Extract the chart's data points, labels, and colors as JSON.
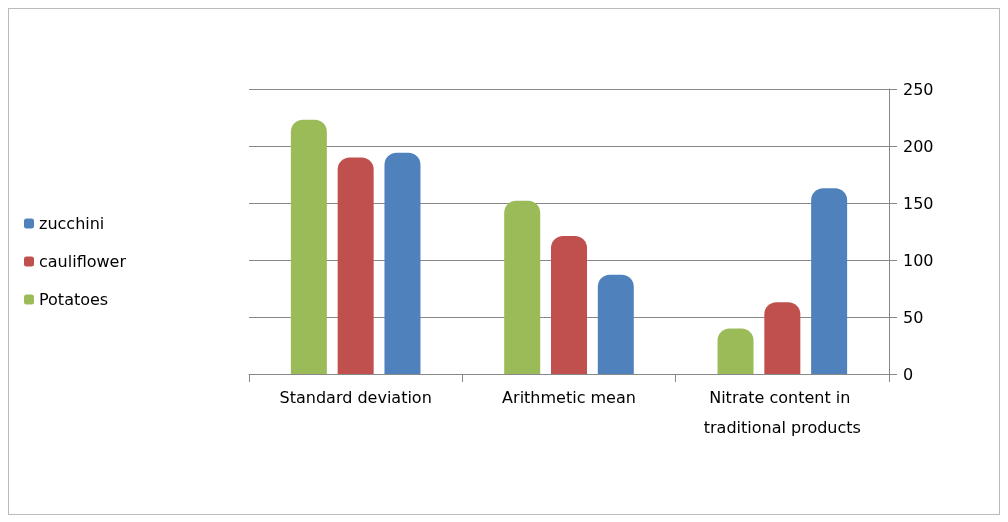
{
  "chart_data": {
    "type": "bar",
    "categories": [
      "Standard deviation",
      "Arithmetic mean",
      "Nitrate content in traditional products"
    ],
    "series": [
      {
        "name": "Potatoes",
        "color": "#9bbb59",
        "values": [
          223,
          152,
          40
        ]
      },
      {
        "name": "cauliflower",
        "color": "#c0504d",
        "values": [
          190,
          121,
          63
        ]
      },
      {
        "name": "zucchini",
        "color": "#4f81bd",
        "values": [
          194,
          87,
          163
        ]
      }
    ],
    "ylim": [
      0,
      250
    ],
    "yticks": [
      0,
      50,
      100,
      150,
      200,
      250
    ],
    "grid": "y",
    "legend": "left"
  }
}
